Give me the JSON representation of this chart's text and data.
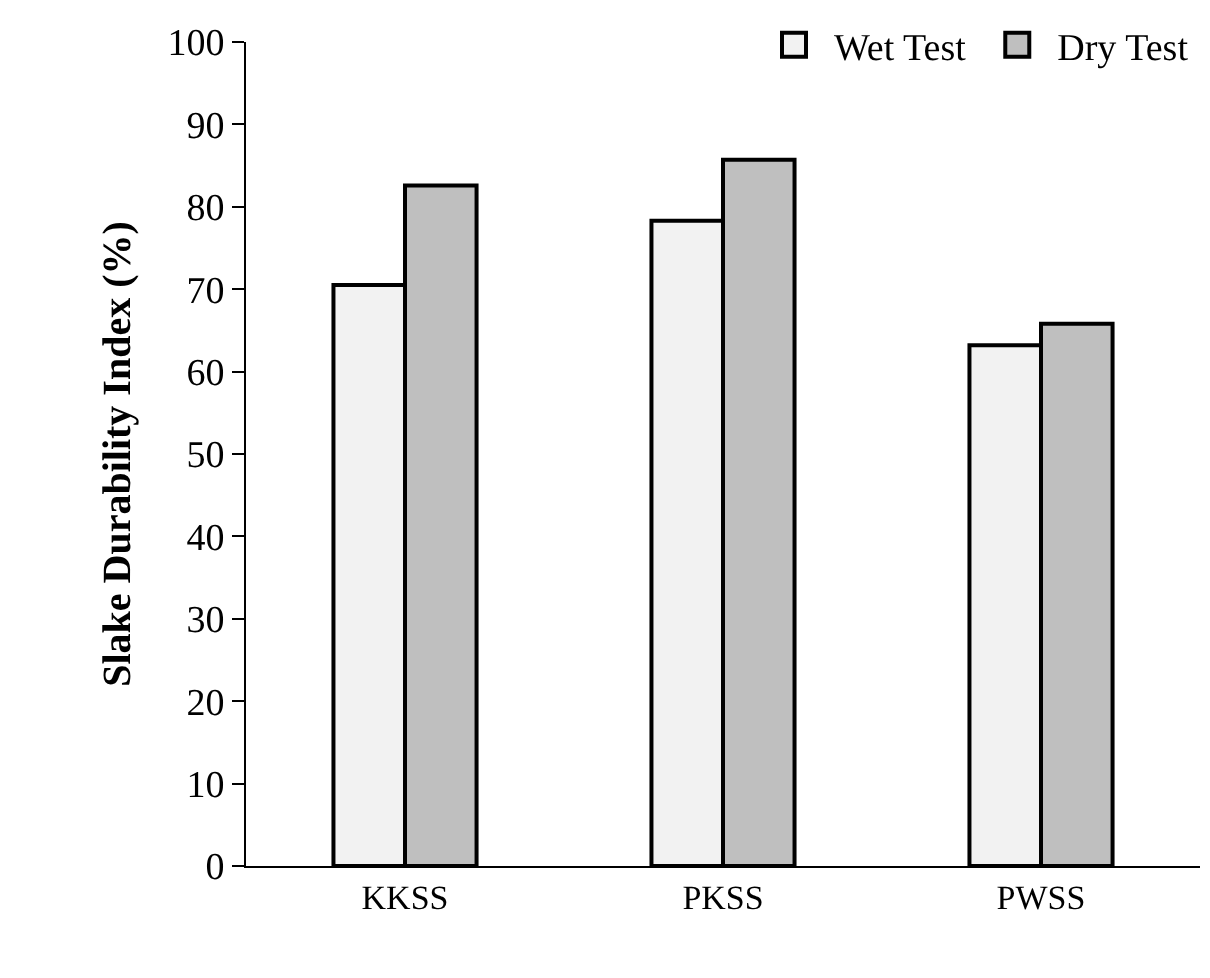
{
  "chart_data": {
    "type": "bar",
    "ylabel": "Slake Durability Index (%)",
    "categories": [
      "KKSS",
      "PKSS",
      "PWSS"
    ],
    "series": [
      {
        "name": "Wet Test",
        "color": "#f2f2f2",
        "values": [
          70.5,
          78.3,
          63.2
        ]
      },
      {
        "name": "Dry Test",
        "color": "#bfbfbf",
        "values": [
          82.6,
          85.7,
          65.8
        ]
      }
    ],
    "ylim": [
      0,
      100
    ],
    "yticks": [
      0,
      10,
      20,
      30,
      40,
      50,
      60,
      70,
      80,
      90,
      100
    ],
    "grid": false,
    "legend": "top right"
  }
}
